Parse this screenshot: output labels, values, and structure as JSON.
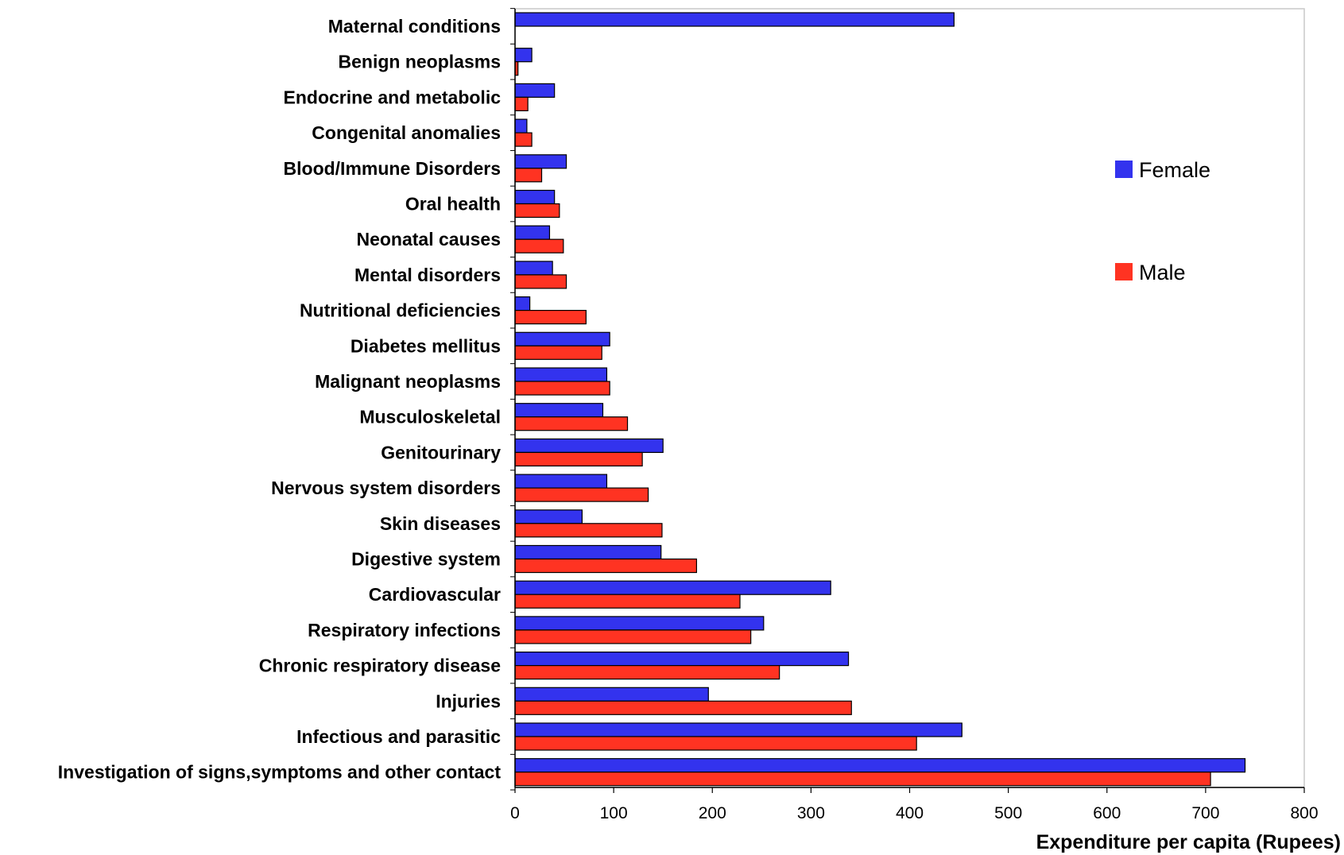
{
  "chart_data": {
    "type": "bar",
    "orientation": "horizontal",
    "title": "",
    "xlabel": "Expenditure per capita (Rupees)",
    "ylabel": "",
    "xlim": [
      0,
      800
    ],
    "xticks": [
      "0",
      "100",
      "200",
      "300",
      "400",
      "500",
      "600",
      "700",
      "800"
    ],
    "grid": false,
    "legend_position": "right",
    "categories": [
      "Maternal conditions",
      "Benign neoplasms",
      "Endocrine and metabolic",
      "Congenital anomalies",
      "Blood/Immune Disorders",
      "Oral health",
      "Neonatal causes",
      "Mental disorders",
      "Nutritional deficiencies",
      "Diabetes mellitus",
      "Malignant neoplasms",
      "Musculoskeletal",
      "Genitourinary",
      "Nervous system disorders",
      "Skin diseases",
      "Digestive system",
      "Cardiovascular",
      "Respiratory infections",
      "Chronic respiratory disease",
      "Injuries",
      "Infectious and parasitic",
      "Investigation of signs,symptoms and other contact"
    ],
    "series": [
      {
        "name": "Female",
        "color": "#3333ee",
        "values": [
          445,
          17,
          40,
          12,
          52,
          40,
          35,
          38,
          15,
          96,
          93,
          89,
          150,
          93,
          68,
          148,
          320,
          252,
          338,
          196,
          453,
          740
        ]
      },
      {
        "name": "Male",
        "color": "#ff3322",
        "values": [
          0,
          3,
          13,
          17,
          27,
          45,
          49,
          52,
          72,
          88,
          96,
          114,
          129,
          135,
          149,
          184,
          228,
          239,
          268,
          341,
          407,
          705
        ]
      }
    ]
  }
}
